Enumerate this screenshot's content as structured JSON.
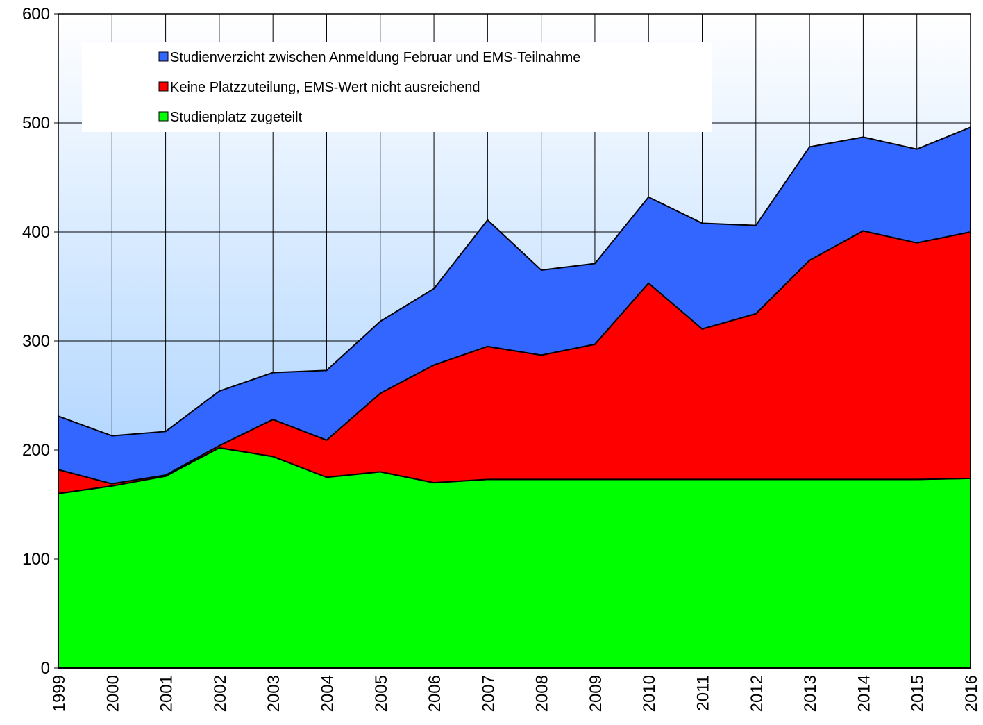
{
  "chart_data": {
    "type": "stacked_area",
    "categories": [
      "1999",
      "2000",
      "2001",
      "2002",
      "2003",
      "2004",
      "2005",
      "2006",
      "2007",
      "2008",
      "2009",
      "2010",
      "2011",
      "2012",
      "2013",
      "2014",
      "2015",
      "2016"
    ],
    "series": [
      {
        "name": "Studienplatz zugeteilt",
        "color": "#00ff00",
        "values": [
          160,
          167,
          176,
          202,
          194,
          175,
          180,
          170,
          173,
          173,
          173,
          173,
          173,
          173,
          173,
          173,
          173,
          174
        ]
      },
      {
        "name": "Keine Platzzuteilung, EMS-Wert nicht ausreichend",
        "color": "#ff0000",
        "values": [
          22,
          2,
          1,
          2,
          34,
          34,
          72,
          108,
          122,
          114,
          124,
          180,
          138,
          152,
          201,
          228,
          217,
          226
        ]
      },
      {
        "name": "Studienverzicht zwischen Anmeldung Februar und EMS-Teilnahme",
        "color": "#3366ff",
        "values": [
          49,
          44,
          40,
          50,
          43,
          64,
          66,
          70,
          116,
          78,
          74,
          79,
          97,
          81,
          104,
          86,
          86,
          96
        ]
      }
    ],
    "ylim": [
      0,
      600
    ],
    "yticks": [
      0,
      100,
      200,
      300,
      400,
      500,
      600
    ],
    "grid": true
  }
}
